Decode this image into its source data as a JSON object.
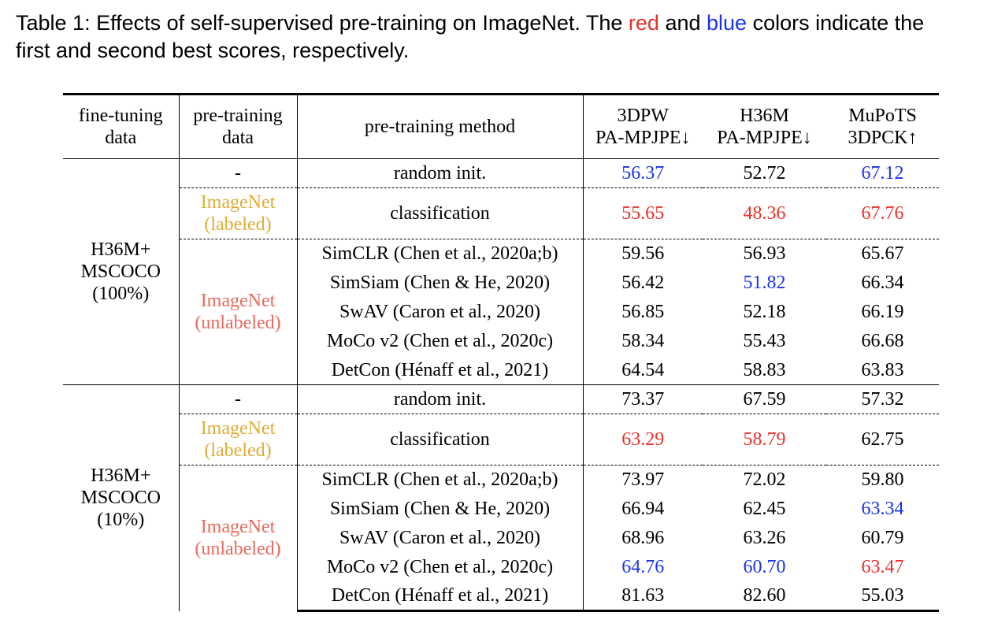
{
  "caption": {
    "line1_a": "Table 1: Effects of self-supervised pre-training on ImageNet. The ",
    "red_word": "red",
    "line1_b": " and ",
    "blue_word": "blue",
    "line1_c": " colors indicate the",
    "line2": "first and second best scores, respectively."
  },
  "colors": {
    "red": "#e8312b",
    "blue": "#1a34e6",
    "labeled": "#e0ac36",
    "unlabeled": "#e86a5e"
  },
  "header": {
    "ft_1": "fine-tuning",
    "ft_2": "data",
    "pt_1": "pre-training",
    "pt_2": "data",
    "method": "pre-training method",
    "c1_1": "3DPW",
    "c1_2": "PA-MPJPE↓",
    "c2_1": "H36M",
    "c2_2": "PA-MPJPE↓",
    "c3_1": "MuPoTS",
    "c3_2": "3DPCK↑"
  },
  "sections": [
    {
      "ft_1": "H36M+",
      "ft_2": "MSCOCO",
      "ft_3": "(100%)",
      "none_label": "-",
      "labeled_1": "ImageNet",
      "labeled_2": "(labeled)",
      "unlabeled_1": "ImageNet",
      "unlabeled_2": "(unlabeled)",
      "rows": [
        {
          "method": "random init.",
          "v": [
            "56.37",
            "52.72",
            "67.12"
          ],
          "c": [
            "blue",
            "",
            "blue"
          ]
        },
        {
          "method": "classification",
          "v": [
            "55.65",
            "48.36",
            "67.76"
          ],
          "c": [
            "red",
            "red",
            "red"
          ]
        },
        {
          "method": "SimCLR (Chen et al., 2020a;b)",
          "v": [
            "59.56",
            "56.93",
            "65.67"
          ],
          "c": [
            "",
            "",
            ""
          ]
        },
        {
          "method": "SimSiam (Chen & He, 2020)",
          "v": [
            "56.42",
            "51.82",
            "66.34"
          ],
          "c": [
            "",
            "blue",
            ""
          ]
        },
        {
          "method": "SwAV (Caron et al., 2020)",
          "v": [
            "56.85",
            "52.18",
            "66.19"
          ],
          "c": [
            "",
            "",
            ""
          ]
        },
        {
          "method": "MoCo v2 (Chen et al., 2020c)",
          "v": [
            "58.34",
            "55.43",
            "66.68"
          ],
          "c": [
            "",
            "",
            ""
          ]
        },
        {
          "method": "DetCon (Hénaff et al., 2021)",
          "v": [
            "64.54",
            "58.83",
            "63.83"
          ],
          "c": [
            "",
            "",
            ""
          ]
        }
      ]
    },
    {
      "ft_1": "H36M+",
      "ft_2": "MSCOCO",
      "ft_3": "(10%)",
      "none_label": "-",
      "labeled_1": "ImageNet",
      "labeled_2": "(labeled)",
      "unlabeled_1": "ImageNet",
      "unlabeled_2": "(unlabeled)",
      "rows": [
        {
          "method": "random init.",
          "v": [
            "73.37",
            "67.59",
            "57.32"
          ],
          "c": [
            "",
            "",
            ""
          ]
        },
        {
          "method": "classification",
          "v": [
            "63.29",
            "58.79",
            "62.75"
          ],
          "c": [
            "red",
            "red",
            ""
          ]
        },
        {
          "method": "SimCLR (Chen et al., 2020a;b)",
          "v": [
            "73.97",
            "72.02",
            "59.80"
          ],
          "c": [
            "",
            "",
            ""
          ]
        },
        {
          "method": "SimSiam (Chen & He, 2020)",
          "v": [
            "66.94",
            "62.45",
            "63.34"
          ],
          "c": [
            "",
            "",
            "blue"
          ]
        },
        {
          "method": "SwAV (Caron et al., 2020)",
          "v": [
            "68.96",
            "63.26",
            "60.79"
          ],
          "c": [
            "",
            "",
            ""
          ]
        },
        {
          "method": "MoCo v2 (Chen et al., 2020c)",
          "v": [
            "64.76",
            "60.70",
            "63.47"
          ],
          "c": [
            "blue",
            "blue",
            "red"
          ]
        },
        {
          "method": "DetCon (Hénaff et al., 2021)",
          "v": [
            "81.63",
            "82.60",
            "55.03"
          ],
          "c": [
            "",
            "",
            ""
          ]
        }
      ]
    }
  ]
}
